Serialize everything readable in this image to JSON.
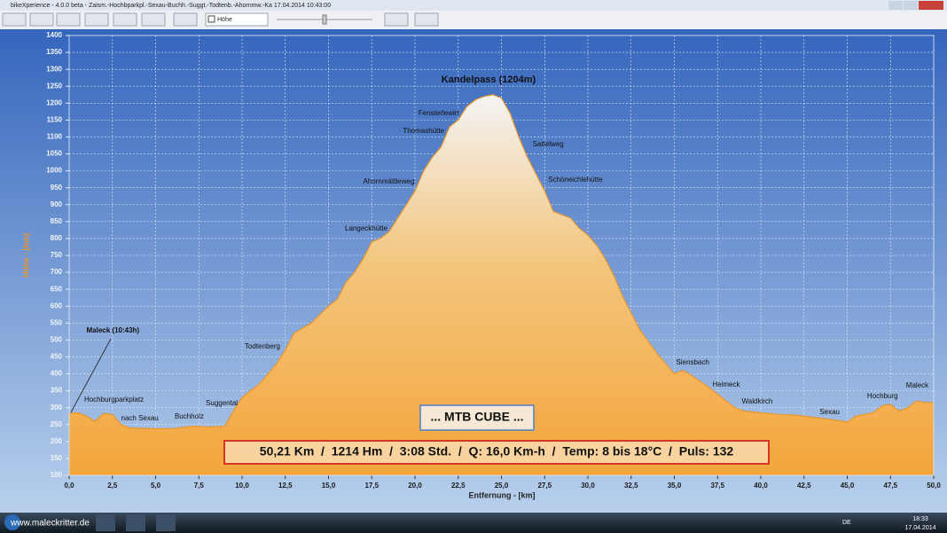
{
  "window": {
    "title": "bikeXperience - 4.0.0 beta - Zaism.-Hochbparkpl.-Sexau-Buchh.-Suggt.-Todtenb.-Ahornmw.-Ka 17.04.2014 10:43:00",
    "layer_select": "Höhe"
  },
  "chart_data": {
    "type": "area",
    "title": "Kandelpass (1204m)",
    "x_label": "Entfernung - [km]",
    "y_label": "Höhe - [hm]",
    "x": [
      0,
      0.5,
      1,
      1.5,
      2,
      2.5,
      3,
      3.5,
      5,
      6,
      7,
      7.5,
      8,
      9,
      9.5,
      10,
      11,
      11.5,
      12,
      12.5,
      13,
      14,
      15,
      15.5,
      16,
      16.5,
      17,
      17.5,
      18,
      18.5,
      19,
      19.5,
      20,
      20.5,
      21,
      21.5,
      22,
      22.5,
      23,
      23.5,
      24,
      24.5,
      25,
      25.5,
      26,
      26.5,
      27,
      27.5,
      28,
      29,
      29.5,
      30,
      30.5,
      31,
      31.5,
      32,
      32.5,
      33,
      34,
      34.5,
      35,
      35.5,
      36,
      37,
      38,
      38.5,
      39,
      40,
      41,
      42,
      43,
      44,
      45,
      45.5,
      46,
      46.5,
      47,
      47.5,
      48,
      48.5,
      49,
      49.5,
      50
    ],
    "values": [
      283,
      285,
      275,
      260,
      283,
      280,
      250,
      240,
      238,
      238,
      245,
      245,
      243,
      245,
      290,
      330,
      370,
      400,
      430,
      470,
      520,
      550,
      600,
      620,
      670,
      700,
      740,
      790,
      800,
      820,
      860,
      900,
      940,
      1000,
      1040,
      1070,
      1130,
      1150,
      1190,
      1210,
      1220,
      1225,
      1215,
      1170,
      1100,
      1040,
      990,
      940,
      880,
      860,
      830,
      810,
      780,
      740,
      690,
      630,
      580,
      530,
      460,
      430,
      400,
      410,
      395,
      360,
      320,
      300,
      290,
      285,
      280,
      278,
      272,
      265,
      258,
      275,
      280,
      285,
      305,
      310,
      290,
      300,
      320,
      315,
      315
    ],
    "color": "#e8962a",
    "xlim": [
      0,
      50
    ],
    "ylim": [
      100,
      1400
    ],
    "xticks": [
      {
        "value": 0,
        "label": "0,0"
      },
      {
        "value": 2.5,
        "label": "2,5"
      },
      {
        "value": 5,
        "label": "5,0"
      },
      {
        "value": 7.5,
        "label": "7,5"
      },
      {
        "value": 10,
        "label": "10,0"
      },
      {
        "value": 12.5,
        "label": "12,5"
      },
      {
        "value": 15,
        "label": "15,0"
      },
      {
        "value": 17.5,
        "label": "17,5"
      },
      {
        "value": 20,
        "label": "20,0"
      },
      {
        "value": 22.5,
        "label": "22,5"
      },
      {
        "value": 25,
        "label": "25,0"
      },
      {
        "value": 27.5,
        "label": "27,5"
      },
      {
        "value": 30,
        "label": "30,0"
      },
      {
        "value": 32.5,
        "label": "32,5"
      },
      {
        "value": 35,
        "label": "35,0"
      },
      {
        "value": 37.5,
        "label": "37,5"
      },
      {
        "value": 40,
        "label": "40,0"
      },
      {
        "value": 42.5,
        "label": "42,5"
      },
      {
        "value": 45,
        "label": "45,0"
      },
      {
        "value": 47.5,
        "label": "47,5"
      },
      {
        "value": 50,
        "label": "50,0"
      }
    ],
    "yticks": [
      100,
      150,
      200,
      250,
      300,
      350,
      400,
      450,
      500,
      550,
      600,
      650,
      700,
      750,
      800,
      850,
      900,
      950,
      1000,
      1050,
      1100,
      1150,
      1200,
      1250,
      1300,
      1350,
      1400
    ],
    "grid": true,
    "annotations": [
      {
        "text": "Maleck (10:43h)",
        "x": 1.0,
        "y": 527
      },
      {
        "text": "Hochburgparkplatz",
        "x": 0.87,
        "y": 323
      },
      {
        "text": "nach Sexau",
        "x": 3.0,
        "y": 268
      },
      {
        "text": "Buchholz",
        "x": 6.1,
        "y": 273
      },
      {
        "text": "Suggental",
        "x": 7.9,
        "y": 312
      },
      {
        "text": "Todtenberg",
        "x": 10.15,
        "y": 480
      },
      {
        "text": "Langeckhütte",
        "x": 15.95,
        "y": 829
      },
      {
        "text": "Ahornmättleweg",
        "x": 17.0,
        "y": 968
      },
      {
        "text": "Thomashütte",
        "x": 19.3,
        "y": 1117
      },
      {
        "text": "Fensterlewirt",
        "x": 20.2,
        "y": 1169
      },
      {
        "text": "Sattelweg",
        "x": 26.8,
        "y": 1078
      },
      {
        "text": "Schöneichlehütte",
        "x": 27.7,
        "y": 973
      },
      {
        "text": "Siensbach",
        "x": 35.1,
        "y": 433
      },
      {
        "text": "Heimeck",
        "x": 37.2,
        "y": 367
      },
      {
        "text": "Waldkirch",
        "x": 38.9,
        "y": 318
      },
      {
        "text": "Sexau",
        "x": 43.4,
        "y": 286
      },
      {
        "text": "Hochburg",
        "x": 46.15,
        "y": 333
      },
      {
        "text": "Maleck",
        "x": 48.4,
        "y": 365
      }
    ],
    "info_box": "... MTB CUBE ...",
    "stats_box": "50,21 Km  /  1214 Hm  /  3:08 Std.  /  Q: 16,0 Km-h  /  Temp: 8 bis 18°C  /  Puls: 132"
  },
  "taskbar": {
    "url": "www.maleckritter.de",
    "language": "DE",
    "time": "18:33",
    "date": "17.04.2014"
  }
}
